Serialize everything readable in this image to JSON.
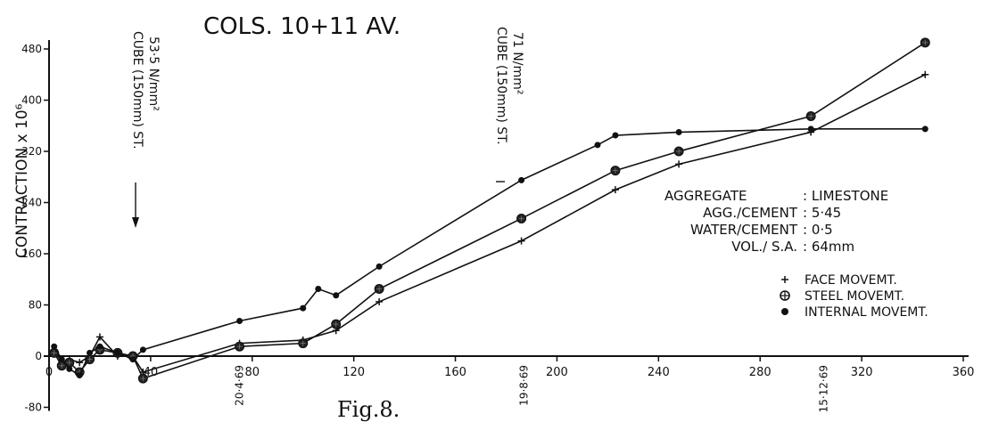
{
  "chart_data": {
    "type": "line",
    "title": "COLS. 10+11 AV.",
    "ylabel": "CONTRACTION x 10⁶",
    "xlim": [
      0,
      360
    ],
    "ylim": [
      -80,
      480
    ],
    "x_ticks": [
      "0",
      "40",
      "80",
      "120",
      "160",
      "200",
      "240",
      "280",
      "320",
      "360"
    ],
    "y_ticks": [
      "-80",
      "0",
      "80",
      "160",
      "240",
      "320",
      "400",
      "480"
    ],
    "date_labels": [
      {
        "x": 75,
        "text": "20·4·69"
      },
      {
        "x": 187,
        "text": "19·8·69"
      },
      {
        "x": 305,
        "text": "15·12·69"
      }
    ],
    "series": [
      {
        "name": "FACE MOVEMT.",
        "marker": "plus",
        "x": [
          2,
          5,
          8,
          12,
          16,
          20,
          27,
          33,
          37,
          75,
          100,
          113,
          130,
          186,
          223,
          248,
          300,
          345
        ],
        "y": [
          10,
          -10,
          -5,
          -10,
          0,
          30,
          0,
          0,
          -25,
          20,
          25,
          40,
          85,
          180,
          260,
          300,
          350,
          440
        ]
      },
      {
        "name": "STEEL MOVEMT.",
        "marker": "circled-plus",
        "x": [
          2,
          5,
          8,
          12,
          16,
          20,
          27,
          33,
          37,
          75,
          100,
          113,
          130,
          186,
          223,
          248,
          300,
          345
        ],
        "y": [
          5,
          -15,
          -10,
          -25,
          -5,
          10,
          5,
          0,
          -35,
          15,
          20,
          50,
          105,
          215,
          290,
          320,
          375,
          490
        ]
      },
      {
        "name": "INTERNAL MOVEMT.",
        "marker": "dot",
        "x": [
          2,
          5,
          8,
          12,
          16,
          20,
          27,
          33,
          37,
          75,
          100,
          106,
          113,
          130,
          186,
          216,
          223,
          248,
          300,
          345
        ],
        "y": [
          15,
          -5,
          -20,
          -30,
          5,
          15,
          5,
          -5,
          10,
          55,
          75,
          105,
          95,
          140,
          275,
          330,
          345,
          350,
          355,
          355
        ]
      }
    ],
    "annotations": [
      {
        "line1": "CUBE (150mm) ST.",
        "line2": "53·5 N/mm²",
        "x": 28
      },
      {
        "line1": "CUBE (150mm) ST.",
        "line2": "71 N/mm²",
        "x": 180
      }
    ],
    "info_table": [
      {
        "label": "AGGREGATE",
        "value": ": LIMESTONE"
      },
      {
        "label": "AGG./CEMENT",
        "value": ": 5·45"
      },
      {
        "label": "WATER/CEMENT",
        "value": ": 0·5"
      },
      {
        "label": "VOL./ S.A.",
        "value": ": 64mm"
      }
    ],
    "caption": "Fig.8.",
    "legend_position": "right"
  }
}
